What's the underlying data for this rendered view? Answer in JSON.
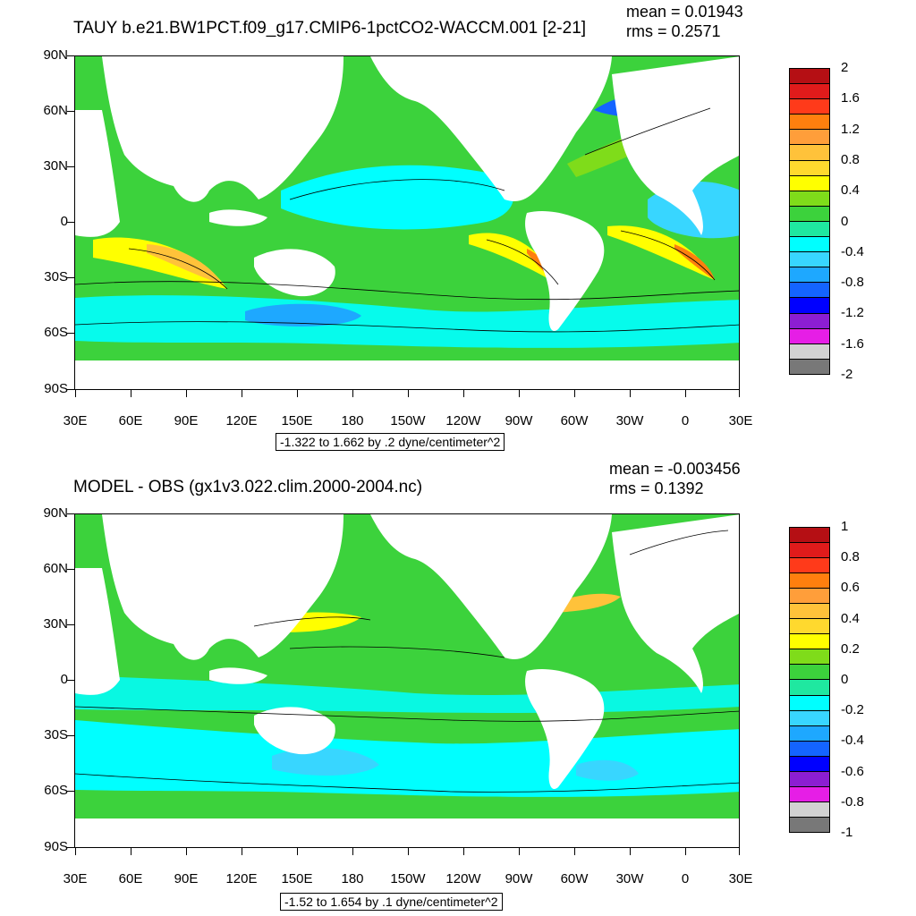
{
  "panels": [
    {
      "title": "TAUY b.e21.BW1PCT.f09_g17.CMIP6-1pctCO2-WACCM.001 [2-21]",
      "mean_text": "mean = 0.01943",
      "rms_text": "rms = 0.2571",
      "contour_info": "-1.322 to 1.662 by .2 dyne/centimeter^2",
      "lat_labels": [
        "90N",
        "60N",
        "30N",
        "0",
        "30S",
        "60S",
        "90S"
      ],
      "lon_labels": [
        "30E",
        "60E",
        "90E",
        "120E",
        "150E",
        "180",
        "150W",
        "120W",
        "90W",
        "60W",
        "30W",
        "0",
        "30E"
      ],
      "colorbar": {
        "labels": [
          "2",
          "1.6",
          "1.2",
          "0.8",
          "0.4",
          "0",
          "-0.4",
          "-0.8",
          "-1.2",
          "-1.6",
          "-2"
        ],
        "colors": [
          "#b50f14",
          "#e01b1b",
          "#ff3a1a",
          "#ff7f0e",
          "#ff9e3a",
          "#ffc23a",
          "#ffd92e",
          "#ffff00",
          "#7fdc1a",
          "#3cd23c",
          "#1fe8a0",
          "#00ffff",
          "#38d6ff",
          "#1ea8ff",
          "#1464ff",
          "#0000ff",
          "#8c1ed2",
          "#e61ee6",
          "#d2d2d2",
          "#787878"
        ]
      }
    },
    {
      "title": "MODEL - OBS (gx1v3.022.clim.2000-2004.nc)",
      "mean_text": "mean = -0.003456",
      "rms_text": "rms = 0.1392",
      "contour_info": "-1.52 to 1.654 by .1 dyne/centimeter^2",
      "lat_labels": [
        "90N",
        "60N",
        "30N",
        "0",
        "30S",
        "60S",
        "90S"
      ],
      "lon_labels": [
        "30E",
        "60E",
        "90E",
        "120E",
        "150E",
        "180",
        "150W",
        "120W",
        "90W",
        "60W",
        "30W",
        "0",
        "30E"
      ],
      "colorbar": {
        "labels": [
          "1",
          "0.8",
          "0.6",
          "0.4",
          "0.2",
          "0",
          "-0.2",
          "-0.4",
          "-0.6",
          "-0.8",
          "-1"
        ],
        "colors": [
          "#b50f14",
          "#e01b1b",
          "#ff3a1a",
          "#ff7f0e",
          "#ff9e3a",
          "#ffc23a",
          "#ffd92e",
          "#ffff00",
          "#7fdc1a",
          "#3cd23c",
          "#1fe8a0",
          "#00ffff",
          "#38d6ff",
          "#1ea8ff",
          "#1464ff",
          "#0000ff",
          "#8c1ed2",
          "#e61ee6",
          "#d2d2d2",
          "#787878"
        ]
      }
    }
  ]
}
